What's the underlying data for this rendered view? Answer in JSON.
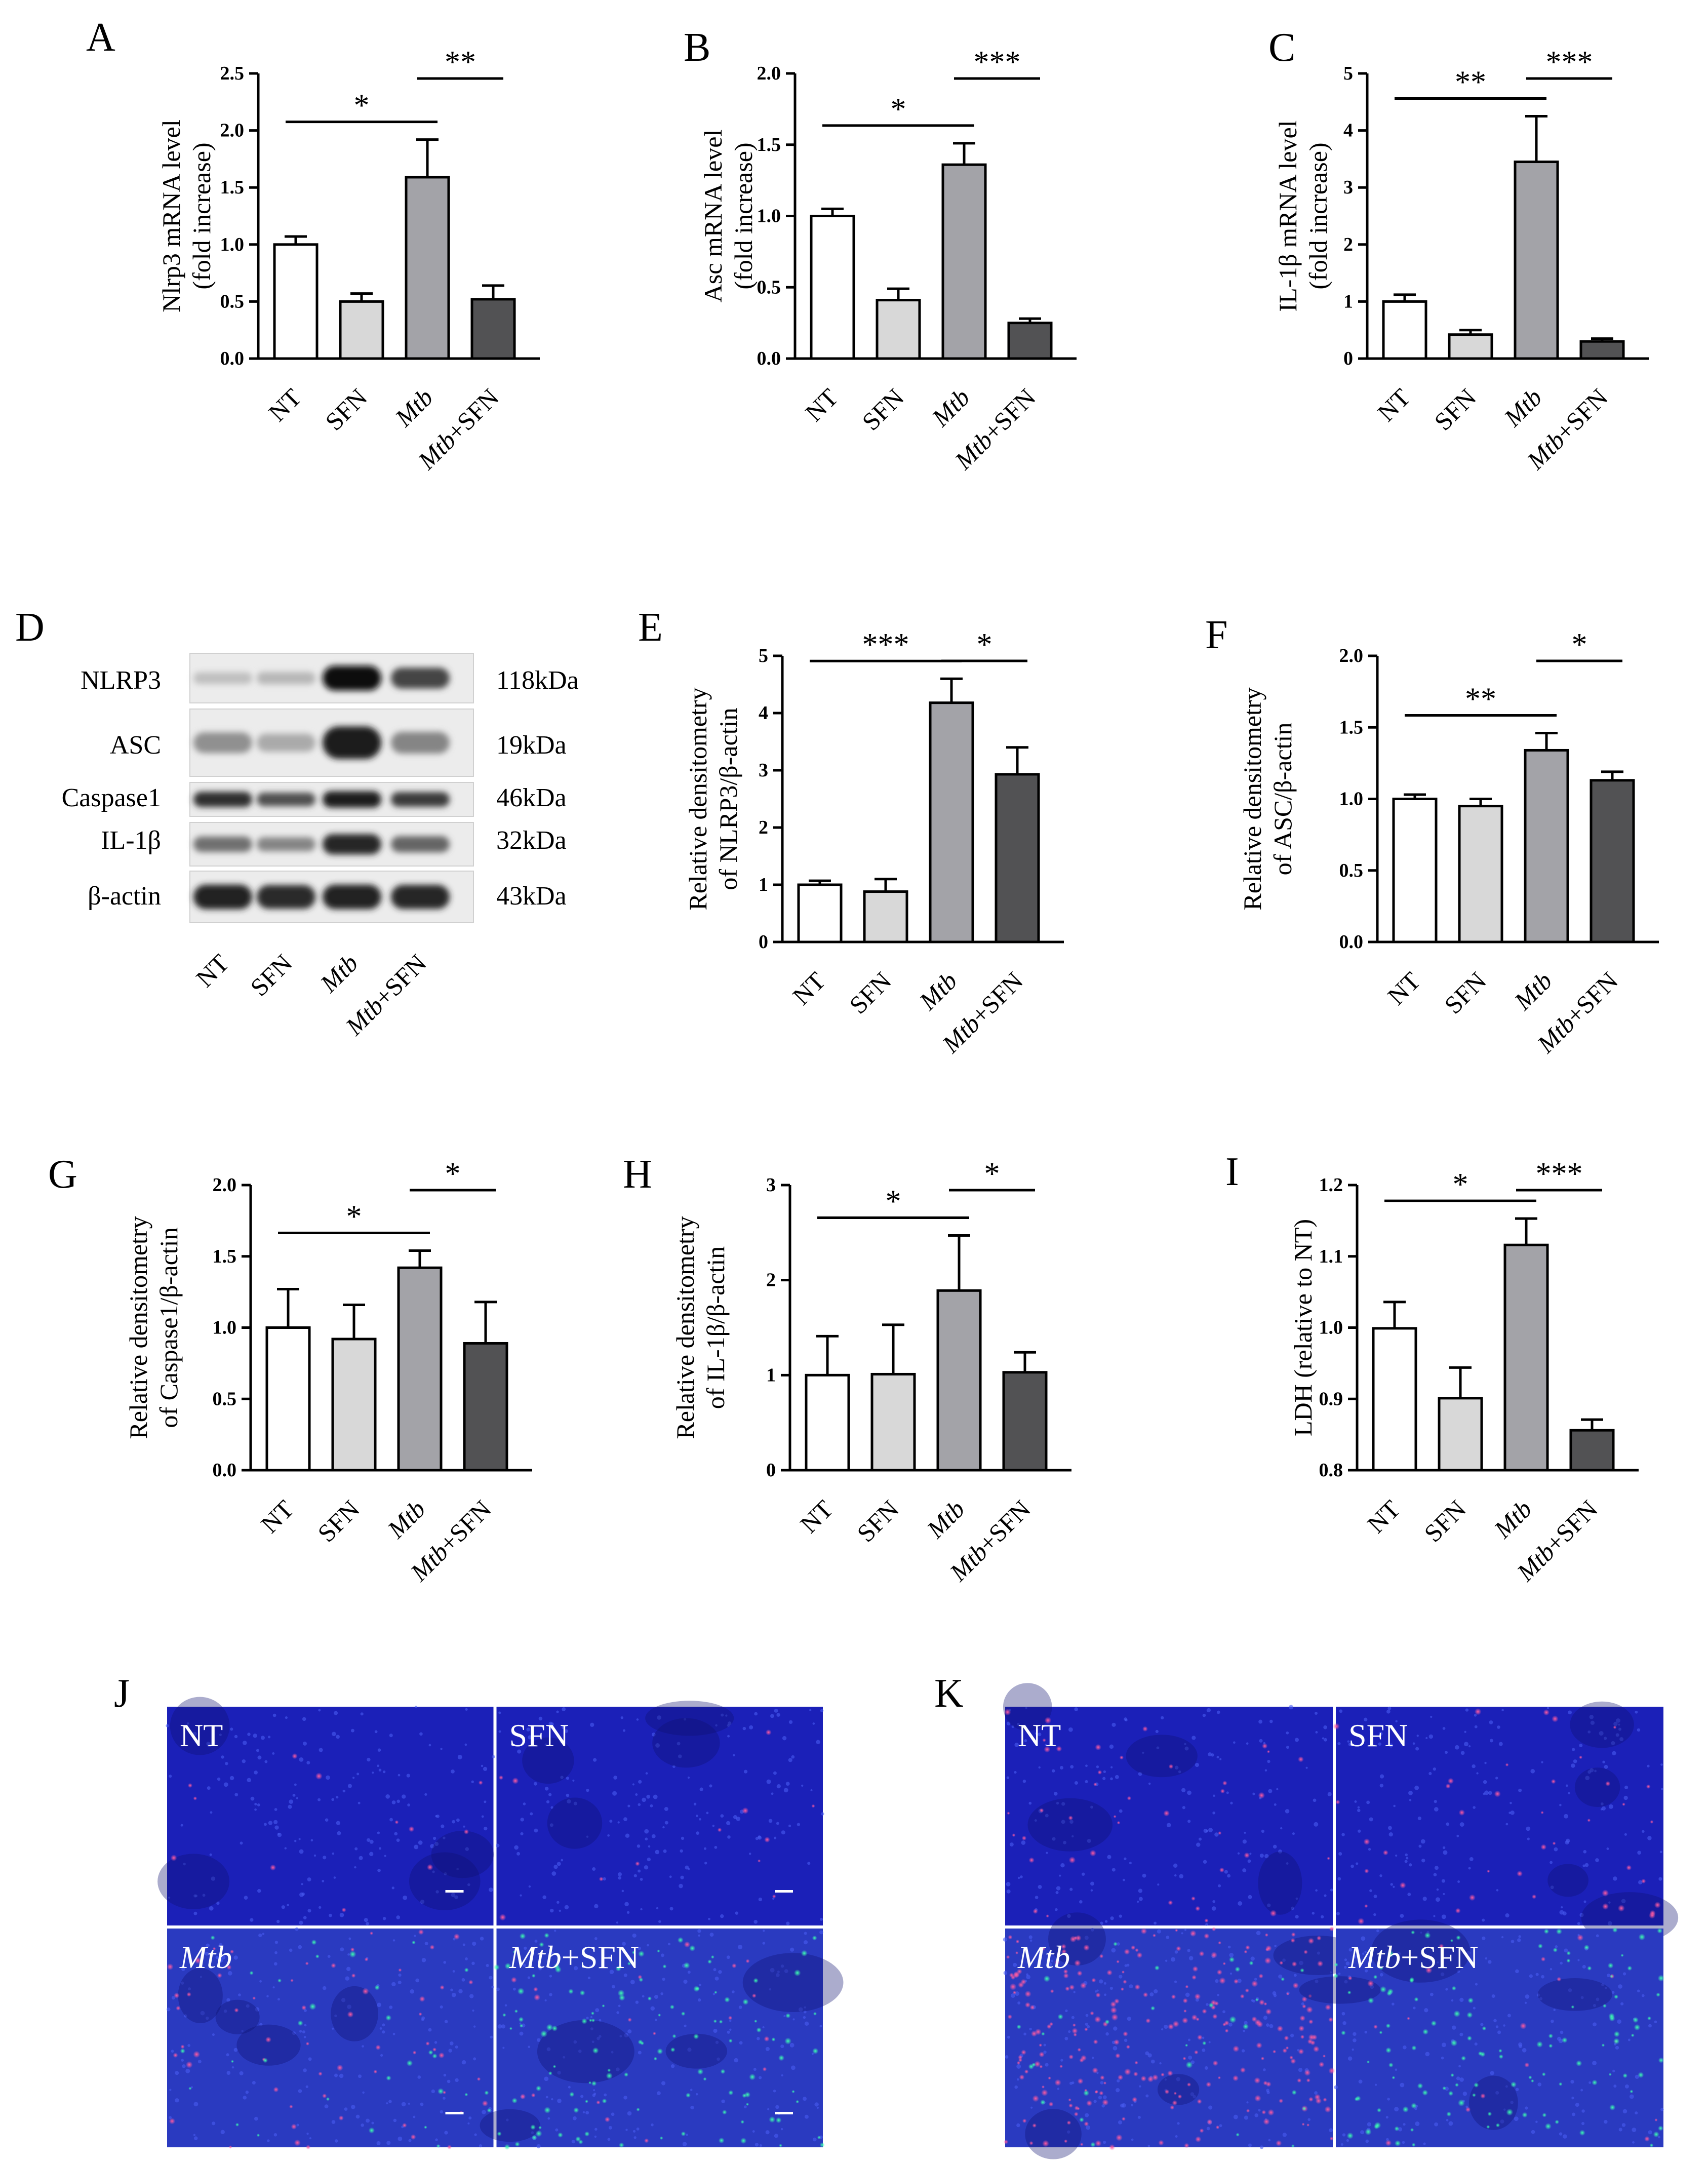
{
  "colors": {
    "nt": "#ffffff",
    "sfn": "#d8d8d8",
    "mtb": "#a3a3a8",
    "mtb_sfn": "#525254",
    "axis": "#000000",
    "micro_bg": "#1b20b8"
  },
  "group_labels": [
    "NT",
    "SFN",
    "Mtb",
    "Mtb+SFN"
  ],
  "chart_data": [
    {
      "panel": "A",
      "type": "bar",
      "categories": [
        "NT",
        "SFN",
        "Mtb",
        "Mtb+SFN"
      ],
      "ylabel": [
        "Nlrp3 mRNA level",
        "(fold increase)"
      ],
      "ylim": [
        0,
        2.5
      ],
      "yticks": [
        "0.0",
        "0.5",
        "1.0",
        "1.5",
        "2.0",
        "2.5"
      ],
      "values": [
        1.0,
        0.5,
        1.59,
        0.52
      ],
      "errors": [
        0.07,
        0.07,
        0.33,
        0.12
      ],
      "significance": [
        {
          "from": 0,
          "to": 2,
          "label": "*"
        },
        {
          "from": 2,
          "to": 3,
          "label": "**"
        }
      ]
    },
    {
      "panel": "B",
      "type": "bar",
      "categories": [
        "NT",
        "SFN",
        "Mtb",
        "Mtb+SFN"
      ],
      "ylabel": [
        "Asc mRNA level",
        "(fold increase)"
      ],
      "ylim": [
        0,
        2.0
      ],
      "yticks": [
        "0.0",
        "0.5",
        "1.0",
        "1.5",
        "2.0"
      ],
      "values": [
        1.0,
        0.41,
        1.36,
        0.25
      ],
      "errors": [
        0.05,
        0.08,
        0.15,
        0.03
      ],
      "significance": [
        {
          "from": 0,
          "to": 2,
          "label": "*"
        },
        {
          "from": 2,
          "to": 3,
          "label": "***"
        }
      ]
    },
    {
      "panel": "C",
      "type": "bar",
      "categories": [
        "NT",
        "SFN",
        "Mtb",
        "Mtb+SFN"
      ],
      "ylabel": [
        "IL-1β mRNA level",
        "(fold increase)"
      ],
      "ylim": [
        0,
        5
      ],
      "yticks": [
        "0",
        "1",
        "2",
        "3",
        "4",
        "5"
      ],
      "values": [
        1.0,
        0.42,
        3.45,
        0.3
      ],
      "errors": [
        0.12,
        0.08,
        0.8,
        0.05
      ],
      "significance": [
        {
          "from": 0,
          "to": 2,
          "label": "**"
        },
        {
          "from": 2,
          "to": 3,
          "label": "***"
        }
      ]
    },
    {
      "panel": "E",
      "type": "bar",
      "categories": [
        "NT",
        "SFN",
        "Mtb",
        "Mtb+SFN"
      ],
      "ylabel": [
        "Relative densitometry",
        "of NLRP3/β-actin"
      ],
      "ylim": [
        0,
        5
      ],
      "yticks": [
        "0",
        "1",
        "2",
        "3",
        "4",
        "5"
      ],
      "values": [
        1.0,
        0.88,
        4.18,
        2.93
      ],
      "errors": [
        0.07,
        0.22,
        0.42,
        0.47
      ],
      "significance": [
        {
          "from": 0,
          "to": 2,
          "label": "***"
        },
        {
          "from": 2,
          "to": 3,
          "label": "*"
        }
      ]
    },
    {
      "panel": "F",
      "type": "bar",
      "categories": [
        "NT",
        "SFN",
        "Mtb",
        "Mtb+SFN"
      ],
      "ylabel": [
        "Relative densitometry",
        "of ASC/β-actin"
      ],
      "ylim": [
        0,
        2.0
      ],
      "yticks": [
        "0.0",
        "0.5",
        "1.0",
        "1.5",
        "2.0"
      ],
      "values": [
        1.0,
        0.95,
        1.34,
        1.13
      ],
      "errors": [
        0.03,
        0.05,
        0.12,
        0.06
      ],
      "significance": [
        {
          "from": 0,
          "to": 2,
          "label": "**"
        },
        {
          "from": 2,
          "to": 3,
          "label": "*"
        }
      ]
    },
    {
      "panel": "G",
      "type": "bar",
      "categories": [
        "NT",
        "SFN",
        "Mtb",
        "Mtb+SFN"
      ],
      "ylabel": [
        "Relative densitometry",
        "of Caspase1/β-actin"
      ],
      "ylim": [
        0,
        2.0
      ],
      "yticks": [
        "0.0",
        "0.5",
        "1.0",
        "1.5",
        "2.0"
      ],
      "values": [
        1.0,
        0.92,
        1.42,
        0.89
      ],
      "errors": [
        0.27,
        0.24,
        0.12,
        0.29
      ],
      "significance": [
        {
          "from": 0,
          "to": 2,
          "label": "*"
        },
        {
          "from": 2,
          "to": 3,
          "label": "*"
        }
      ]
    },
    {
      "panel": "H",
      "type": "bar",
      "categories": [
        "NT",
        "SFN",
        "Mtb",
        "Mtb+SFN"
      ],
      "ylabel": [
        "Relative densitometry",
        "of IL-1β/β-actin"
      ],
      "ylim": [
        0,
        3
      ],
      "yticks": [
        "0",
        "1",
        "2",
        "3"
      ],
      "values": [
        1.0,
        1.01,
        1.89,
        1.03
      ],
      "errors": [
        0.41,
        0.52,
        0.58,
        0.21
      ],
      "significance": [
        {
          "from": 0,
          "to": 2,
          "label": "*"
        },
        {
          "from": 2,
          "to": 3,
          "label": "*"
        }
      ]
    },
    {
      "panel": "I",
      "type": "bar",
      "categories": [
        "NT",
        "SFN",
        "Mtb",
        "Mtb+SFN"
      ],
      "ylabel": [
        "LDH (relative to NT)"
      ],
      "ylim": [
        0.8,
        1.2
      ],
      "yticks": [
        "0.8",
        "0.9",
        "1.0",
        "1.1",
        "1.2"
      ],
      "values": [
        0.999,
        0.901,
        1.116,
        0.856
      ],
      "errors": [
        0.037,
        0.043,
        0.037,
        0.015
      ],
      "significance": [
        {
          "from": 0,
          "to": 2,
          "label": "*"
        },
        {
          "from": 2,
          "to": 3,
          "label": "***"
        }
      ]
    }
  ],
  "western_blot": {
    "panel": "D",
    "lanes": [
      "NT",
      "SFN",
      "Mtb",
      "Mtb+SFN"
    ],
    "rows": [
      {
        "protein": "NLRP3",
        "size": "118kDa",
        "intensity": [
          0.18,
          0.22,
          1.0,
          0.75
        ]
      },
      {
        "protein": "ASC",
        "size": "19kDa",
        "intensity": [
          0.4,
          0.28,
          0.95,
          0.45
        ]
      },
      {
        "protein": "Caspase1",
        "size": "46kDa",
        "intensity": [
          0.85,
          0.7,
          0.95,
          0.8
        ]
      },
      {
        "protein": "IL-1β",
        "size": "32kDa",
        "intensity": [
          0.55,
          0.45,
          0.9,
          0.6
        ]
      },
      {
        "protein": "β-actin",
        "size": "43kDa",
        "intensity": [
          0.92,
          0.88,
          0.92,
          0.9
        ]
      }
    ]
  },
  "microscopy": [
    {
      "panel": "J",
      "quadrants": [
        {
          "label": "NT",
          "italic_part": ""
        },
        {
          "label": "SFN",
          "italic_part": ""
        },
        {
          "label": "",
          "italic_part": "Mtb"
        },
        {
          "label": "+SFN",
          "italic_part": "Mtb"
        }
      ]
    },
    {
      "panel": "K",
      "quadrants": [
        {
          "label": "NT",
          "italic_part": ""
        },
        {
          "label": "SFN",
          "italic_part": ""
        },
        {
          "label": "",
          "italic_part": "Mtb"
        },
        {
          "label": "+SFN",
          "italic_part": "Mtb"
        }
      ]
    }
  ]
}
